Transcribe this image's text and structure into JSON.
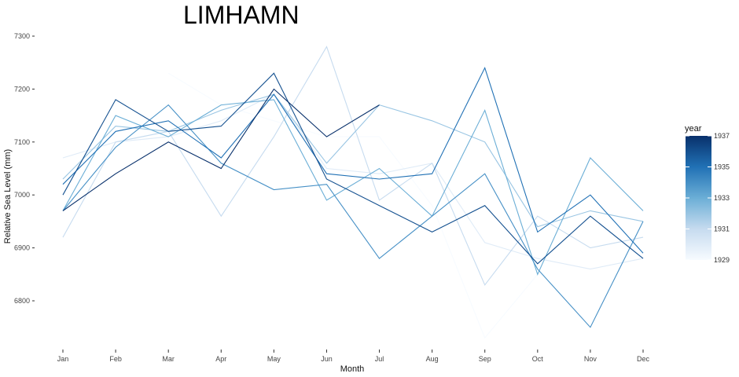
{
  "chart_data": {
    "type": "line",
    "title": "LIMHAMN",
    "xlabel": "Month",
    "ylabel": "Relative Sea Level (mm)",
    "categories": [
      "Jan",
      "Feb",
      "Mar",
      "Apr",
      "May",
      "Jun",
      "Jul",
      "Aug",
      "Sep",
      "Oct",
      "Nov",
      "Dec"
    ],
    "ylim": [
      6730,
      7300
    ],
    "yticks": [
      6800,
      6900,
      7000,
      7100,
      7200,
      7300
    ],
    "grid": false,
    "legend": {
      "title": "year",
      "position": "right",
      "type": "colorbar",
      "range": [
        1929,
        1937
      ],
      "ticks": [
        1929,
        1931,
        1933,
        1935,
        1937
      ],
      "color_low": "#f7fbff",
      "color_high": "#08306b"
    },
    "series": [
      {
        "year": 1929,
        "values": [
          7030,
          null,
          7230,
          7170,
          7140,
          7110,
          7110,
          6980,
          6730,
          6850,
          null,
          null
        ]
      },
      {
        "year": 1930,
        "values": [
          7070,
          7100,
          7110,
          7140,
          7190,
          7050,
          7040,
          7060,
          6910,
          6880,
          6860,
          6880
        ]
      },
      {
        "year": 1931,
        "values": [
          6920,
          7100,
          7120,
          6960,
          7110,
          7280,
          6990,
          7060,
          6830,
          6960,
          6900,
          6920
        ]
      },
      {
        "year": 1932,
        "values": [
          7030,
          7130,
          7120,
          7160,
          7190,
          7060,
          7170,
          7140,
          7100,
          6940,
          6970,
          6950
        ]
      },
      {
        "year": 1933,
        "values": [
          6970,
          7150,
          7110,
          7170,
          7180,
          6990,
          7050,
          6960,
          7160,
          6850,
          7070,
          6970
        ]
      },
      {
        "year": 1934,
        "values": [
          6970,
          7090,
          7170,
          7060,
          7010,
          7020,
          6880,
          6960,
          7040,
          6860,
          6750,
          6950
        ]
      },
      {
        "year": 1935,
        "values": [
          7020,
          7120,
          7140,
          7070,
          7190,
          7040,
          7030,
          7040,
          7240,
          6930,
          7000,
          6890
        ]
      },
      {
        "year": 1936,
        "values": [
          7000,
          7180,
          7120,
          7130,
          7230,
          7030,
          6980,
          6930,
          6980,
          6870,
          6960,
          6880
        ]
      },
      {
        "year": 1937,
        "values": [
          6970,
          7040,
          7100,
          7050,
          7200,
          7110,
          7170,
          null,
          null,
          null,
          null,
          null
        ]
      }
    ]
  }
}
